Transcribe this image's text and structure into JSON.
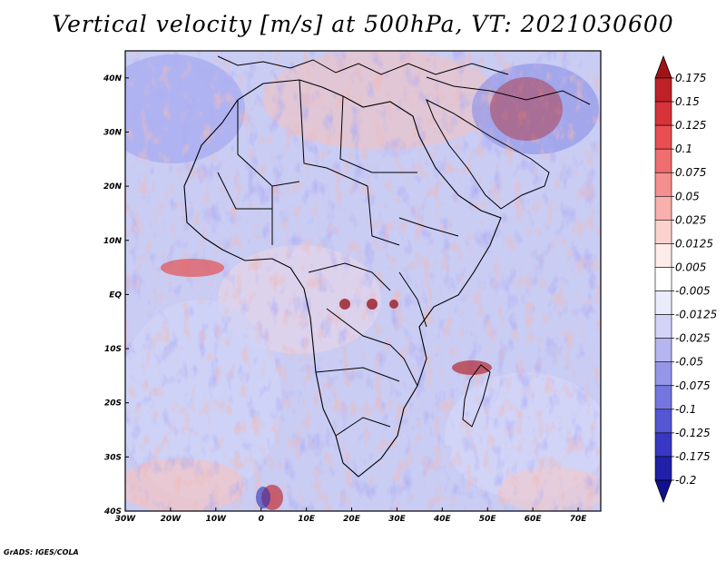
{
  "title": "Vertical velocity [m/s] at 500hPa, VT: 2021030600",
  "credit": "GrADS: IGES/COLA",
  "map": {
    "lon_range": [
      -30,
      75
    ],
    "lat_range": [
      -40,
      45
    ],
    "lon_ticks": [
      {
        "value": -30,
        "label": "30W"
      },
      {
        "value": -20,
        "label": "20W"
      },
      {
        "value": -10,
        "label": "10W"
      },
      {
        "value": 0,
        "label": "0"
      },
      {
        "value": 10,
        "label": "10E"
      },
      {
        "value": 20,
        "label": "20E"
      },
      {
        "value": 30,
        "label": "30E"
      },
      {
        "value": 40,
        "label": "40E"
      },
      {
        "value": 50,
        "label": "50E"
      },
      {
        "value": 60,
        "label": "60E"
      },
      {
        "value": 70,
        "label": "70E"
      }
    ],
    "lat_ticks": [
      {
        "value": 40,
        "label": "40N"
      },
      {
        "value": 30,
        "label": "30N"
      },
      {
        "value": 20,
        "label": "20N"
      },
      {
        "value": 10,
        "label": "10N"
      },
      {
        "value": 0,
        "label": "EQ"
      },
      {
        "value": -10,
        "label": "10S"
      },
      {
        "value": -20,
        "label": "20S"
      },
      {
        "value": -30,
        "label": "30S"
      },
      {
        "value": -40,
        "label": "40S"
      }
    ]
  },
  "colorbar": {
    "labels": [
      "0.175",
      "0.15",
      "0.125",
      "0.1",
      "0.075",
      "0.05",
      "0.025",
      "0.0125",
      "0.005",
      "-0.005",
      "-0.0125",
      "-0.025",
      "-0.05",
      "-0.075",
      "-0.1",
      "-0.125",
      "-0.175",
      "-0.2"
    ],
    "colors": [
      "#a01418",
      "#be2228",
      "#d8323a",
      "#e84e52",
      "#f06e70",
      "#f58e8e",
      "#f9b0ad",
      "#fcd2cf",
      "#fdecea",
      "#ffffff",
      "#ebecfb",
      "#d2d3f6",
      "#b5b6f0",
      "#9596e8",
      "#7576df",
      "#5556d4",
      "#3838c4",
      "#2020a8",
      "#101090"
    ]
  }
}
